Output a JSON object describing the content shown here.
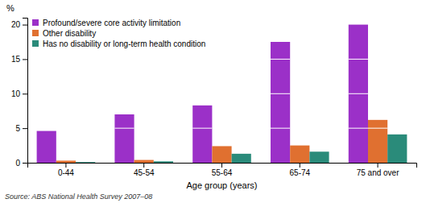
{
  "chart_data": {
    "type": "bar",
    "categories": [
      "0-44",
      "45-54",
      "55-64",
      "65-74",
      "75 and over"
    ],
    "series": [
      {
        "name": "Profound/severe core activity limitation",
        "color": "#9B30C8",
        "values": [
          4.6,
          7.0,
          8.3,
          17.5,
          20.0
        ]
      },
      {
        "name": "Other disability",
        "color": "#E07030",
        "values": [
          0.3,
          0.4,
          2.4,
          2.5,
          6.2
        ]
      },
      {
        "name": "Has no disability or long-term health condition",
        "color": "#2A8B7A",
        "values": [
          0.1,
          0.2,
          1.3,
          1.6,
          4.1
        ]
      }
    ],
    "xlabel": "Age group (years)",
    "ylabel": "%",
    "annotations": [
      "Source: ABS National Health Survey 2007–08"
    ],
    "ylim": [
      0,
      21
    ],
    "yticks": [
      0,
      5,
      10,
      15,
      20
    ],
    "grid": false,
    "legend": "upper left"
  }
}
